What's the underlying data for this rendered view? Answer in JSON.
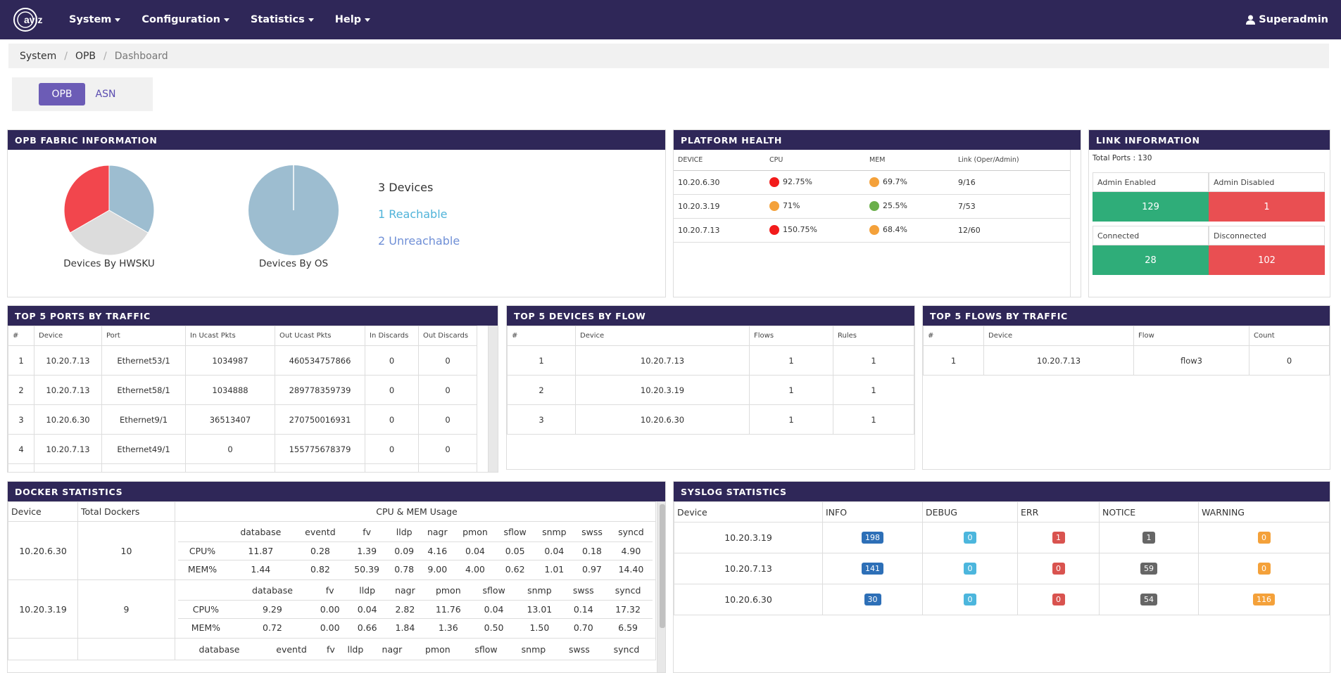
{
  "nav": {
    "menu": [
      "System",
      "Configuration",
      "Statistics",
      "Help"
    ],
    "user": "Superadmin",
    "logo_text": "aviz"
  },
  "breadcrumb": [
    "System",
    "OPB",
    "Dashboard"
  ],
  "toggle": {
    "active": "OPB",
    "inactive": "ASN"
  },
  "fabric": {
    "title": "OPB FABRIC INFORMATION",
    "pie1_label": "Devices By HWSKU",
    "pie2_label": "Devices By OS",
    "total": "3 Devices",
    "reachable": "1 Reachable",
    "unreachable": "2 Unreachable",
    "colors": {
      "blue": "#9dbdd0",
      "red": "#f2464d",
      "grey": "#dcdcdc"
    }
  },
  "health": {
    "title": "PLATFORM HEALTH",
    "headers": [
      "DEVICE",
      "CPU",
      "MEM",
      "Link (Oper/Admin)"
    ],
    "rows": [
      {
        "device": "10.20.6.30",
        "cpu": "92.75%",
        "cpu_color": "#f21b1b",
        "mem": "69.7%",
        "mem_color": "#f4a13a",
        "link": "9/16"
      },
      {
        "device": "10.20.3.19",
        "cpu": "71%",
        "cpu_color": "#f4a13a",
        "mem": "25.5%",
        "mem_color": "#6aaf4a",
        "link": "7/53"
      },
      {
        "device": "10.20.7.13",
        "cpu": "150.75%",
        "cpu_color": "#f21b1b",
        "mem": "68.4%",
        "mem_color": "#f4a13a",
        "link": "12/60"
      }
    ]
  },
  "link": {
    "title": "LINK INFORMATION",
    "total": "Total Ports : 130",
    "admin_enabled_label": "Admin Enabled",
    "admin_disabled_label": "Admin Disabled",
    "admin_enabled": "129",
    "admin_disabled": "1",
    "connected_label": "Connected",
    "disconnected_label": "Disconnected",
    "connected": "28",
    "disconnected": "102"
  },
  "ports": {
    "title": "TOP 5 PORTS BY TRAFFIC",
    "headers": [
      "#",
      "Device",
      "Port",
      "In Ucast Pkts",
      "Out Ucast Pkts",
      "In Discards",
      "Out Discards"
    ],
    "rows": [
      [
        "1",
        "10.20.7.13",
        "Ethernet53/1",
        "1034987",
        "460534757866",
        "0",
        "0"
      ],
      [
        "2",
        "10.20.7.13",
        "Ethernet58/1",
        "1034888",
        "289778359739",
        "0",
        "0"
      ],
      [
        "3",
        "10.20.6.30",
        "Ethernet9/1",
        "36513407",
        "270750016931",
        "0",
        "0"
      ],
      [
        "4",
        "10.20.7.13",
        "Ethernet49/1",
        "0",
        "155775678379",
        "0",
        "0"
      ]
    ]
  },
  "devices_flow": {
    "title": "TOP 5 DEVICES BY FLOW",
    "headers": [
      "#",
      "Device",
      "Flows",
      "Rules"
    ],
    "rows": [
      [
        "1",
        "10.20.7.13",
        "1",
        "1"
      ],
      [
        "2",
        "10.20.3.19",
        "1",
        "1"
      ],
      [
        "3",
        "10.20.6.30",
        "1",
        "1"
      ]
    ]
  },
  "flows": {
    "title": "TOP 5 FLOWS BY TRAFFIC",
    "headers": [
      "#",
      "Device",
      "Flow",
      "Count"
    ],
    "rows": [
      [
        "1",
        "10.20.7.13",
        "flow3",
        "0"
      ]
    ]
  },
  "docker": {
    "title": "DOCKER STATISTICS",
    "headers": [
      "Device",
      "Total Dockers",
      "CPU & MEM Usage"
    ],
    "rows": [
      {
        "device": "10.20.6.30",
        "total": "10",
        "cols": [
          "",
          "database",
          "eventd",
          "fv",
          "lldp",
          "nagr",
          "pmon",
          "sflow",
          "snmp",
          "swss",
          "syncd"
        ],
        "cpu": [
          "CPU%",
          "11.87",
          "0.28",
          "1.39",
          "0.09",
          "4.16",
          "0.04",
          "0.05",
          "0.04",
          "0.18",
          "4.90"
        ],
        "mem": [
          "MEM%",
          "1.44",
          "0.82",
          "50.39",
          "0.78",
          "9.00",
          "4.00",
          "0.62",
          "1.01",
          "0.97",
          "14.40"
        ]
      },
      {
        "device": "10.20.3.19",
        "total": "9",
        "cols": [
          "",
          "database",
          "fv",
          "lldp",
          "nagr",
          "pmon",
          "sflow",
          "snmp",
          "swss",
          "syncd"
        ],
        "cpu": [
          "CPU%",
          "9.29",
          "0.00",
          "0.04",
          "2.82",
          "11.76",
          "0.04",
          "13.01",
          "0.14",
          "17.32"
        ],
        "mem": [
          "MEM%",
          "0.72",
          "0.00",
          "0.66",
          "1.84",
          "1.36",
          "0.50",
          "1.50",
          "0.70",
          "6.59"
        ]
      },
      {
        "device": "",
        "total": "",
        "cols": [
          "",
          "database",
          "eventd",
          "fv",
          "lldp",
          "nagr",
          "pmon",
          "sflow",
          "snmp",
          "swss",
          "syncd"
        ]
      }
    ]
  },
  "syslog": {
    "title": "SYSLOG STATISTICS",
    "headers": [
      "Device",
      "INFO",
      "DEBUG",
      "ERR",
      "NOTICE",
      "WARNING"
    ],
    "rows": [
      [
        "10.20.3.19",
        "198",
        "0",
        "1",
        "1",
        "0"
      ],
      [
        "10.20.7.13",
        "141",
        "0",
        "0",
        "59",
        "0"
      ],
      [
        "10.20.6.30",
        "30",
        "0",
        "0",
        "54",
        "116"
      ]
    ]
  }
}
